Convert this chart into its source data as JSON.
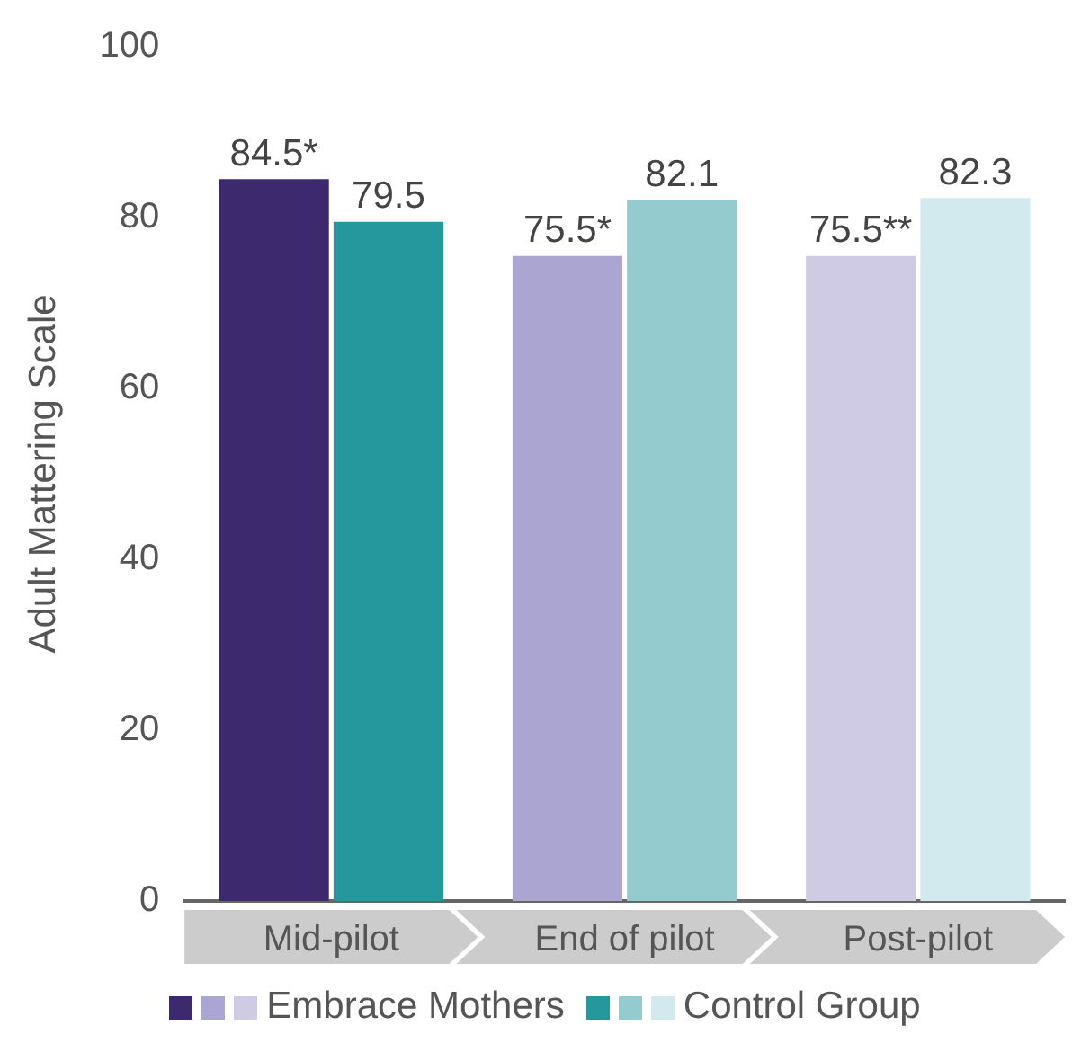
{
  "chart_data": {
    "type": "bar",
    "ylabel": "Adult Mattering Scale",
    "categories": [
      "Mid-pilot",
      "End of pilot",
      "Post-pilot"
    ],
    "series": [
      {
        "name": "Embrace Mothers",
        "colors": [
          "#3d2a6e",
          "#aba5d1",
          "#cfcbe4"
        ],
        "values": [
          84.5,
          75.5,
          75.5
        ],
        "value_labels": [
          "84.5*",
          "75.5*",
          "75.5**"
        ]
      },
      {
        "name": "Control Group",
        "colors": [
          "#25989e",
          "#93cbcf",
          "#d2e9ed"
        ],
        "values": [
          79.5,
          82.1,
          82.3
        ],
        "value_labels": [
          "79.5",
          "82.1",
          "82.3"
        ]
      }
    ],
    "ylim": [
      0,
      100
    ],
    "yticks": [
      0,
      20,
      40,
      60,
      80,
      100
    ],
    "grid": false,
    "legend": "bottom"
  }
}
